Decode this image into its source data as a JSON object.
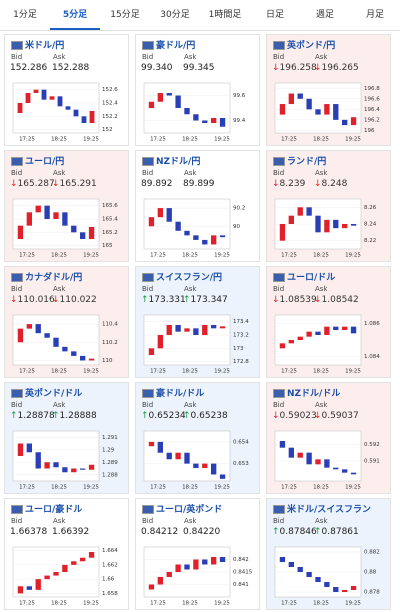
{
  "tabs": {
    "items": [
      "1分足",
      "5分足",
      "15分足",
      "30分足",
      "1時間足",
      "日足",
      "週足",
      "月足"
    ],
    "active": 1
  },
  "labels": {
    "bid": "Bid",
    "ask": "Ask"
  },
  "time_labels": [
    "17:25",
    "18:25",
    "19:25"
  ],
  "cards": [
    {
      "pair": "米ドル/円",
      "bid": "152.286",
      "ask": "152.288",
      "trend": null,
      "ylim": [
        151.95,
        152.7
      ],
      "yticks": [
        152,
        152.2,
        152.4,
        152.6
      ],
      "prices": [
        152.25,
        152.4,
        152.55,
        152.6,
        152.45,
        152.5,
        152.35,
        152.3,
        152.2,
        152.1,
        152.28
      ]
    },
    {
      "pair": "豪ドル/円",
      "bid": "99.340",
      "ask": "99.345",
      "trend": null,
      "ylim": [
        99.3,
        99.7
      ],
      "yticks": [
        99.4,
        99.6
      ],
      "prices": [
        99.5,
        99.55,
        99.62,
        99.6,
        99.5,
        99.45,
        99.4,
        99.38,
        99.42,
        99.35
      ]
    },
    {
      "pair": "英ポンド/円",
      "bid": "196.258",
      "ask": "196.265",
      "trend": "down",
      "ylim": [
        195.95,
        196.9
      ],
      "yticks": [
        196,
        196.2,
        196.4,
        196.6,
        196.8
      ],
      "prices": [
        196.3,
        196.5,
        196.7,
        196.6,
        196.4,
        196.3,
        196.5,
        196.2,
        196.1,
        196.25
      ]
    },
    {
      "pair": "ユーロ/円",
      "bid": "165.287",
      "ask": "165.291",
      "trend": "down",
      "ylim": [
        164.95,
        165.7
      ],
      "yticks": [
        165,
        165.2,
        165.4,
        165.6
      ],
      "prices": [
        165.1,
        165.3,
        165.5,
        165.6,
        165.4,
        165.5,
        165.3,
        165.2,
        165.1,
        165.28
      ]
    },
    {
      "pair": "NZドル/円",
      "bid": "89.892",
      "ask": "89.899",
      "trend": null,
      "ylim": [
        89.75,
        90.3
      ],
      "yticks": [
        90,
        90.2
      ],
      "prices": [
        90,
        90.1,
        90.2,
        90.05,
        89.95,
        89.9,
        89.85,
        89.8,
        89.9,
        89.88
      ]
    },
    {
      "pair": "ランド/円",
      "bid": "8.239",
      "ask": "8.248",
      "trend": "down",
      "ylim": [
        8.21,
        8.27
      ],
      "yticks": [
        8.22,
        8.24,
        8.26
      ],
      "prices": [
        8.22,
        8.24,
        8.25,
        8.26,
        8.25,
        8.23,
        8.245,
        8.235,
        8.24,
        8.238
      ]
    },
    {
      "pair": "カナダドル/円",
      "bid": "110.016",
      "ask": "110.022",
      "trend": "down",
      "ylim": [
        109.95,
        110.5
      ],
      "yticks": [
        110,
        110.2,
        110.4
      ],
      "prices": [
        110.2,
        110.35,
        110.4,
        110.3,
        110.25,
        110.15,
        110.1,
        110.05,
        110,
        110.02
      ]
    },
    {
      "pair": "スイスフラン/円",
      "bid": "173.331",
      "ask": "173.347",
      "trend": "up",
      "ylim": [
        172.75,
        173.5
      ],
      "yticks": [
        172.8,
        173,
        173.2,
        173.4
      ],
      "prices": [
        172.9,
        173,
        173.2,
        173.35,
        173.25,
        173.3,
        173.2,
        173.35,
        173.3,
        173.33
      ]
    },
    {
      "pair": "ユーロ/ドル",
      "bid": "1.08539",
      "ask": "1.08542",
      "trend": "down",
      "ylim": [
        1.0835,
        1.0865
      ],
      "yticks": [
        1.084,
        1.086
      ],
      "prices": [
        1.0845,
        1.0848,
        1.085,
        1.0852,
        1.0855,
        1.0853,
        1.0858,
        1.0856,
        1.0858,
        1.0854
      ]
    },
    {
      "pair": "英ポンド/ドル",
      "bid": "1.28878",
      "ask": "1.28888",
      "trend": "up",
      "ylim": [
        1.2875,
        1.2915
      ],
      "yticks": [
        1.288,
        1.289,
        1.29,
        1.291
      ],
      "prices": [
        1.2895,
        1.2905,
        1.2898,
        1.2885,
        1.289,
        1.2886,
        1.2882,
        1.2885,
        1.2884,
        1.2888
      ]
    },
    {
      "pair": "豪ドル/ドル",
      "bid": "0.65234",
      "ask": "0.65238",
      "trend": "up",
      "ylim": [
        0.6522,
        0.6545
      ],
      "yticks": [
        0.653,
        0.654
      ],
      "prices": [
        0.6538,
        0.654,
        0.6535,
        0.6532,
        0.6535,
        0.653,
        0.6528,
        0.653,
        0.6525,
        0.6523
      ]
    },
    {
      "pair": "NZドル/ドル",
      "bid": "0.59023",
      "ask": "0.59037",
      "trend": "down",
      "ylim": [
        0.5898,
        0.5928
      ],
      "yticks": [
        0.591,
        0.592
      ],
      "prices": [
        0.5922,
        0.5918,
        0.5912,
        0.5915,
        0.5908,
        0.5911,
        0.5906,
        0.5905,
        0.5903,
        0.5902
      ]
    },
    {
      "pair": "ユーロ/豪ドル",
      "bid": "1.66378",
      "ask": "1.66392",
      "trend": null,
      "ylim": [
        1.6575,
        1.6645
      ],
      "yticks": [
        1.658,
        1.66,
        1.662,
        1.664
      ],
      "prices": [
        1.658,
        1.659,
        1.6585,
        1.66,
        1.6605,
        1.661,
        1.662,
        1.6625,
        1.663,
        1.6638
      ]
    },
    {
      "pair": "ユーロ/英ポンド",
      "bid": "0.84212",
      "ask": "0.84220",
      "trend": null,
      "ylim": [
        0.8405,
        0.8425
      ],
      "yticks": [
        0.841,
        0.8415,
        0.842
      ],
      "prices": [
        0.8408,
        0.841,
        0.8413,
        0.8415,
        0.8418,
        0.8416,
        0.842,
        0.8418,
        0.8421,
        0.8419
      ]
    },
    {
      "pair": "米ドル/スイスフラン",
      "bid": "0.87846",
      "ask": "0.87861",
      "trend": "up",
      "ylim": [
        0.8775,
        0.8825
      ],
      "yticks": [
        0.878,
        0.88,
        0.882
      ],
      "prices": [
        0.8815,
        0.881,
        0.8805,
        0.88,
        0.8795,
        0.879,
        0.8785,
        0.878,
        0.8782,
        0.8786
      ]
    }
  ]
}
